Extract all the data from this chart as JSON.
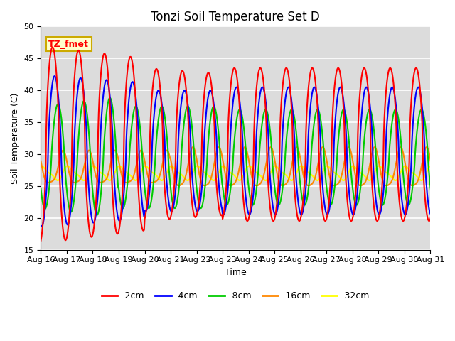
{
  "title": "Tonzi Soil Temperature Set D",
  "xlabel": "Time",
  "ylabel": "Soil Temperature (C)",
  "ylim": [
    15,
    50
  ],
  "x_tick_labels": [
    "Aug 16",
    "Aug 17",
    "Aug 18",
    "Aug 19",
    "Aug 20",
    "Aug 21",
    "Aug 22",
    "Aug 23",
    "Aug 24",
    "Aug 25",
    "Aug 26",
    "Aug 27",
    "Aug 28",
    "Aug 29",
    "Aug 30",
    "Aug 31"
  ],
  "annotation_text": "TZ_fmet",
  "annotation_bg": "#ffffcc",
  "annotation_border": "#ccaa00",
  "series_colors": {
    "-2cm": "#ff0000",
    "-4cm": "#0000ff",
    "-8cm": "#00cc00",
    "-16cm": "#ff8800",
    "-32cm": "#ffff00"
  },
  "background_color": "#dcdcdc",
  "grid_color": "#ffffff",
  "title_fontsize": 12,
  "axis_label_fontsize": 9,
  "tick_fontsize": 8
}
